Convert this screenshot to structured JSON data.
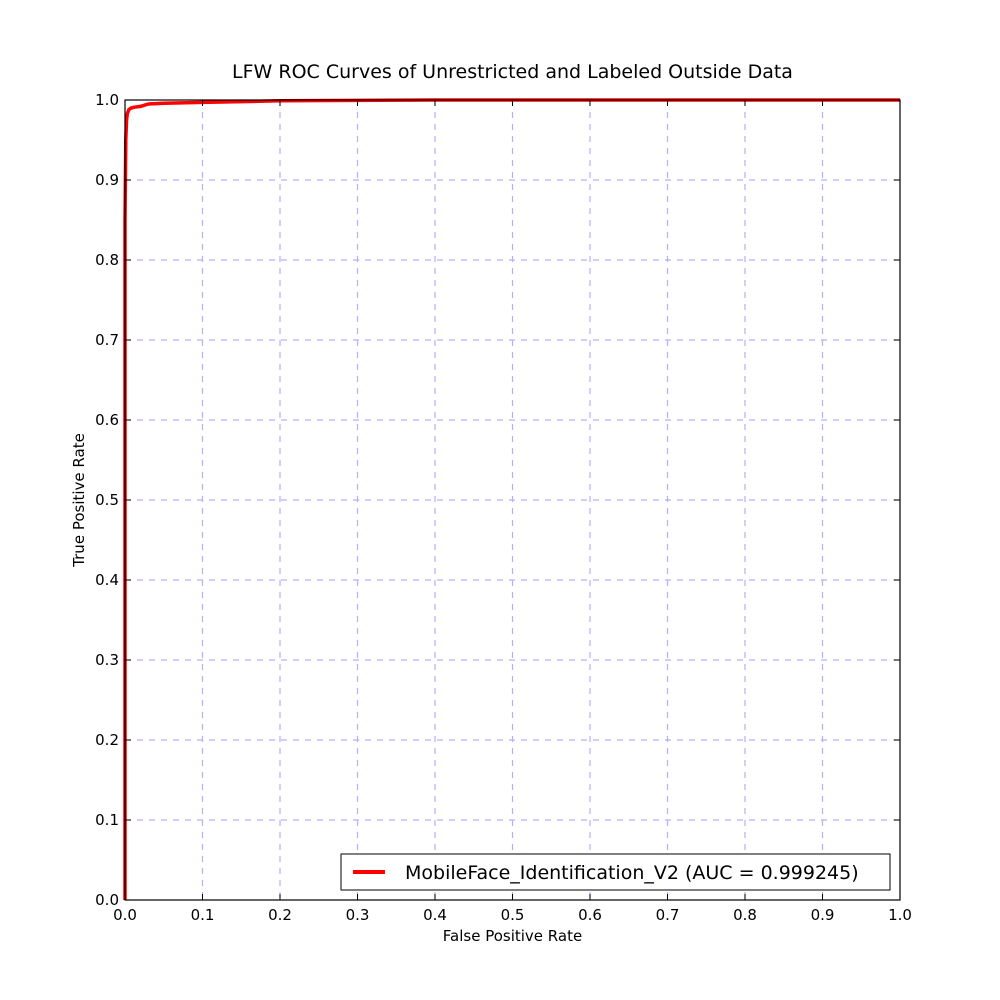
{
  "chart_data": {
    "type": "line",
    "title": "LFW ROC Curves of Unrestricted and Labeled Outside Data",
    "xlabel": "False Positive Rate",
    "ylabel": "True Positive Rate",
    "xlim": [
      0.0,
      1.0
    ],
    "ylim": [
      0.0,
      1.0
    ],
    "xticks": [
      "0.0",
      "0.1",
      "0.2",
      "0.3",
      "0.4",
      "0.5",
      "0.6",
      "0.7",
      "0.8",
      "0.9",
      "1.0"
    ],
    "yticks": [
      "0.0",
      "0.1",
      "0.2",
      "0.3",
      "0.4",
      "0.5",
      "0.6",
      "0.7",
      "0.8",
      "0.9",
      "1.0"
    ],
    "grid": true,
    "grid_color": "#b0b0ff",
    "legend_position": "lower-right",
    "series": [
      {
        "name": "MobileFace_Identification_V2 (AUC = 0.999245)",
        "color": "#ff0000",
        "x": [
          0.0,
          0.0,
          0.001,
          0.002,
          0.003,
          0.005,
          0.008,
          0.012,
          0.02,
          0.03,
          0.05,
          0.1,
          0.2,
          0.3,
          0.4,
          0.5,
          0.6,
          0.7,
          0.8,
          0.9,
          1.0
        ],
        "y": [
          0.0,
          0.85,
          0.95,
          0.975,
          0.983,
          0.988,
          0.99,
          0.991,
          0.992,
          0.995,
          0.996,
          0.997,
          0.999,
          0.9995,
          1.0,
          1.0,
          1.0,
          1.0,
          1.0,
          1.0,
          1.0
        ]
      }
    ]
  }
}
